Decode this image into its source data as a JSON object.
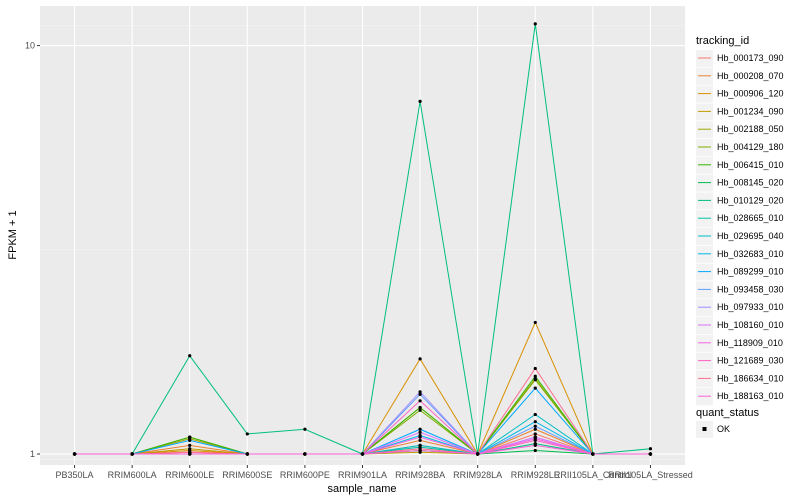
{
  "chart_data": {
    "type": "line",
    "xlabel": "sample_name",
    "ylabel": "FPKM + 1",
    "y_scale": "log10",
    "ylim": [
      0.94,
      12.5
    ],
    "yticks": [
      1,
      10
    ],
    "grid": true,
    "legend_position": "right",
    "categories": [
      "PB350LA",
      "RRIM600LA",
      "RRIM600LE",
      "RRIM600SE",
      "RRIM600PE",
      "RRIM901LA",
      "RRIM928BA",
      "RRIM928LA",
      "RRIM928LE",
      "RRII105LA_Control",
      "RRII105LA_Stressed"
    ],
    "legend": {
      "title": "tracking_id",
      "entries": [
        "Hb_000173_090",
        "Hb_000208_070",
        "Hb_000906_120",
        "Hb_001234_090",
        "Hb_002188_050",
        "Hb_004129_180",
        "Hb_006415_010",
        "Hb_008145_020",
        "Hb_010129_020",
        "Hb_028665_010",
        "Hb_029695_040",
        "Hb_032683_010",
        "Hb_089299_010",
        "Hb_093458_030",
        "Hb_097933_010",
        "Hb_108160_010",
        "Hb_118909_010",
        "Hb_121689_030",
        "Hb_186634_010",
        "Hb_188163_010"
      ]
    },
    "shape_legend": {
      "title": "quant_status",
      "entries": [
        "OK"
      ]
    },
    "series": [
      {
        "name": "Hb_000173_090",
        "color": "#F8766D",
        "values": [
          1,
          1,
          1.01,
          1,
          1,
          1,
          1.05,
          1,
          1.12,
          1,
          1
        ]
      },
      {
        "name": "Hb_000208_070",
        "color": "#EA8331",
        "values": [
          1,
          1,
          1.05,
          1,
          1,
          1,
          1.08,
          1,
          1.15,
          1,
          1
        ]
      },
      {
        "name": "Hb_000906_120",
        "color": "#D89000",
        "values": [
          1,
          1,
          1.02,
          1,
          1,
          1,
          1.71,
          1,
          2.1,
          1,
          1
        ]
      },
      {
        "name": "Hb_001234_090",
        "color": "#C09B00",
        "values": [
          1,
          1,
          1.03,
          1,
          1,
          1,
          1.01,
          1,
          1.06,
          1,
          1
        ]
      },
      {
        "name": "Hb_002188_050",
        "color": "#A3A500",
        "values": [
          1,
          1,
          1.09,
          1,
          1,
          1,
          1.3,
          1,
          1.53,
          1,
          1
        ]
      },
      {
        "name": "Hb_004129_180",
        "color": "#7CAE00",
        "values": [
          1,
          1,
          1.1,
          1,
          1,
          1,
          1.28,
          1,
          1.52,
          1,
          1
        ]
      },
      {
        "name": "Hb_006415_010",
        "color": "#39B600",
        "values": [
          1,
          1,
          1.1,
          1,
          1,
          1,
          1.3,
          1,
          1.55,
          1,
          1
        ]
      },
      {
        "name": "Hb_008145_020",
        "color": "#00BB4E",
        "values": [
          1,
          1,
          1,
          1,
          1,
          1,
          1.02,
          1,
          1.02,
          1,
          1
        ]
      },
      {
        "name": "Hb_010129_020",
        "color": "#00BF7D",
        "values": [
          1,
          1,
          1.74,
          1.12,
          1.15,
          1,
          7.3,
          1,
          11.3,
          1,
          1.03
        ]
      },
      {
        "name": "Hb_028665_010",
        "color": "#00C1A3",
        "values": [
          1,
          1,
          1,
          1,
          1,
          1,
          1.04,
          1,
          1.06,
          1,
          1
        ]
      },
      {
        "name": "Hb_029695_040",
        "color": "#00BFC4",
        "values": [
          1,
          1,
          1,
          1,
          1,
          1,
          1.05,
          1,
          1.25,
          1,
          1
        ]
      },
      {
        "name": "Hb_032683_010",
        "color": "#00B8E7",
        "values": [
          1,
          1,
          1,
          1,
          1,
          1,
          1.11,
          1,
          1.2,
          1,
          1
        ]
      },
      {
        "name": "Hb_089299_010",
        "color": "#00A9FF",
        "values": [
          1,
          1,
          1.08,
          1,
          1,
          1,
          1.15,
          1,
          1.45,
          1,
          1
        ]
      },
      {
        "name": "Hb_093458_030",
        "color": "#619CFF",
        "values": [
          1,
          1,
          1,
          1,
          1,
          1,
          1.4,
          1,
          1.17,
          1,
          1
        ]
      },
      {
        "name": "Hb_097933_010",
        "color": "#9F8CFF",
        "values": [
          1,
          1,
          1,
          1,
          1,
          1,
          1.42,
          1,
          1.1,
          1,
          1
        ]
      },
      {
        "name": "Hb_108160_010",
        "color": "#DB72FB",
        "values": [
          1,
          1,
          1,
          1,
          1,
          1,
          1.13,
          1,
          1.1,
          1,
          1
        ]
      },
      {
        "name": "Hb_118909_010",
        "color": "#F564E3",
        "values": [
          1,
          1,
          1,
          1,
          1,
          1,
          1.1,
          1,
          1.09,
          1,
          1
        ]
      },
      {
        "name": "Hb_121689_030",
        "color": "#FF61C3",
        "values": [
          1,
          1,
          1,
          1,
          1,
          1,
          1.35,
          1,
          1.08,
          1,
          1
        ]
      },
      {
        "name": "Hb_186634_010",
        "color": "#FF6C91",
        "values": [
          1,
          1,
          1.01,
          1,
          1,
          1,
          1.03,
          1,
          1.62,
          1,
          1
        ]
      },
      {
        "name": "Hb_188163_010",
        "color": "#FB61D7",
        "values": [
          1,
          1,
          1,
          1,
          1,
          1,
          1.02,
          1,
          1.05,
          1,
          1
        ]
      }
    ]
  }
}
